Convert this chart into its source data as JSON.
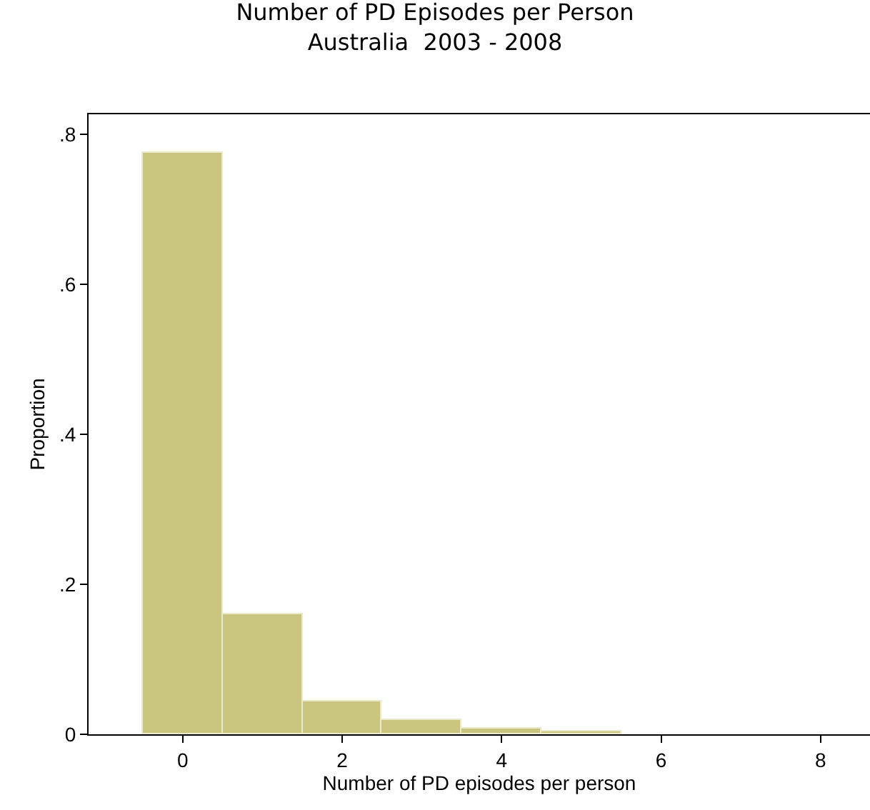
{
  "chart_data": {
    "type": "histogram",
    "title": "Number of PD Episodes per Person\nAustralia  2003 - 2008",
    "xlabel": "Number of PD episodes per person",
    "ylabel": "Proportion",
    "bins": [
      -0.5,
      0.5,
      1.5,
      2.5,
      3.5,
      4.5,
      5.5,
      6.5,
      7.5,
      8.5
    ],
    "values": [
      0.776,
      0.16,
      0.043,
      0.019,
      0.007,
      0.003,
      null,
      null,
      null
    ],
    "color": "#c9c47e",
    "xlim": [
      -1.18,
      8.62
    ],
    "ylim": [
      0,
      0.827
    ],
    "xticks": [
      0,
      2,
      4,
      6,
      8
    ],
    "yticks": [
      0,
      {
        "value": 0.2,
        "label": ".2"
      },
      {
        "value": 0.4,
        "label": ".4"
      },
      {
        "value": 0.6,
        "label": ".6"
      },
      {
        "value": 0.8,
        "label": ".8"
      }
    ]
  }
}
